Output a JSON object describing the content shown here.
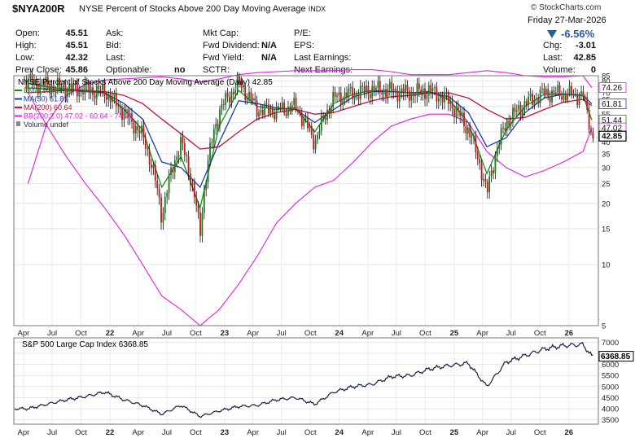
{
  "header": {
    "symbol": "$NYA200R",
    "name": "NYSE Percent of Stocks Above 200 Day Moving Average",
    "exchange": "INDX",
    "brand": "© StockCharts.com",
    "date": "Friday 27-Mar-2026",
    "change_pct": "-6.56%",
    "down_color": "#2a5a9e",
    "quote": [
      {
        "label": "Open:",
        "value": "45.51"
      },
      {
        "label": "High:",
        "value": "45.51"
      },
      {
        "label": "Low:",
        "value": "42.32"
      },
      {
        "label": "Prev Close:",
        "value": "45.86"
      }
    ],
    "book": [
      {
        "label": "Ask:",
        "value": ""
      },
      {
        "label": "Bid:",
        "value": ""
      },
      {
        "label": "Last:",
        "value": ""
      },
      {
        "label": "Optionable:",
        "value": "no"
      }
    ],
    "fundamentals": [
      {
        "label": "Mkt Cap:",
        "value": ""
      },
      {
        "label": "Fwd Dividend:",
        "value": "N/A"
      },
      {
        "label": "Fwd Yield:",
        "value": "N/A"
      },
      {
        "label": "SCTR:",
        "value": ""
      }
    ],
    "earnings": [
      {
        "label": "P/E:"
      },
      {
        "label": "EPS:"
      },
      {
        "label": "Last Earnings:"
      },
      {
        "label": "Next Earnings:"
      }
    ],
    "summary": [
      {
        "label": "Chg:",
        "value": "-3.01"
      },
      {
        "label": "Last:",
        "value": "42.85"
      },
      {
        "label": "Volume:",
        "value": "0"
      }
    ]
  },
  "chart_data": [
    {
      "type": "line",
      "subtype": "candlestick with overlays",
      "title": "NYSE Percent of Stocks Above 200 Day Moving Average (Daily) 42.85",
      "scale": "log",
      "ylim": [
        5,
        85
      ],
      "y_ticks": [
        5,
        10,
        15,
        20,
        25,
        30,
        35,
        40,
        45,
        50,
        55,
        60,
        65,
        70,
        75,
        80,
        85
      ],
      "x_tick_labels": [
        "Apr",
        "Jul",
        "Oct",
        "22",
        "Apr",
        "Jul",
        "Oct",
        "23",
        "Apr",
        "Jul",
        "Oct",
        "24",
        "Apr",
        "Jul",
        "Oct",
        "25",
        "Apr",
        "Jul",
        "Oct",
        "26"
      ],
      "grid": true,
      "legend_position": "top-left",
      "x": [
        "2021-04",
        "2021-06",
        "2021-08",
        "2021-10",
        "2021-12",
        "2022-02",
        "2022-04",
        "2022-06",
        "2022-08",
        "2022-10",
        "2022-12",
        "2023-02",
        "2023-04",
        "2023-06",
        "2023-08",
        "2023-10",
        "2023-12",
        "2024-02",
        "2024-04",
        "2024-06",
        "2024-08",
        "2024-10",
        "2024-12",
        "2025-02",
        "2025-04",
        "2025-06",
        "2025-08",
        "2025-10",
        "2025-12",
        "2026-02",
        "2026-03"
      ],
      "price": [
        80,
        76,
        74,
        73,
        71,
        56,
        43,
        17,
        40,
        14,
        57,
        78,
        58,
        57,
        60,
        40,
        66,
        70,
        73,
        72,
        70,
        72,
        64,
        46,
        22,
        50,
        62,
        70,
        69,
        68,
        43
      ],
      "legend": [
        {
          "name": "EMA(20) 51.44",
          "color": "#1b8a1b"
        },
        {
          "name": "MA(50) 61.81",
          "color": "#1a3fa8"
        },
        {
          "name": "MA(200) 60.64",
          "color": "#c0143c"
        },
        {
          "name": "BB(200,2.0) 47.02 - 60.64 - 74.26",
          "color": "#e020e0"
        },
        {
          "name": "Volume undef",
          "color": "#888888"
        }
      ],
      "series": [
        {
          "name": "EMA(20) 51.44",
          "values": [
            78,
            75,
            73,
            72,
            70,
            58,
            46,
            24,
            34,
            19,
            48,
            72,
            60,
            58,
            59,
            45,
            62,
            69,
            72,
            71,
            70,
            71,
            65,
            50,
            28,
            46,
            60,
            69,
            69,
            68,
            51.44
          ]
        },
        {
          "name": "MA(50) 61.81",
          "values": [
            74,
            73,
            72,
            71,
            70,
            62,
            52,
            32,
            30,
            24,
            40,
            64,
            62,
            59,
            58,
            50,
            58,
            67,
            71,
            71,
            70,
            70,
            67,
            56,
            38,
            42,
            56,
            66,
            69,
            68,
            61.81
          ]
        },
        {
          "name": "MA(200) 60.64",
          "values": [
            70,
            71,
            72,
            72,
            71,
            68,
            62,
            52,
            44,
            37,
            38,
            45,
            52,
            56,
            58,
            55,
            56,
            60,
            64,
            67,
            68,
            70,
            70,
            66,
            58,
            52,
            53,
            58,
            63,
            65,
            60.64
          ]
        },
        {
          "name": "BB upper 74.26",
          "values": [
            25,
            50,
            68,
            77,
            81,
            82,
            83,
            84,
            82,
            79,
            82,
            86,
            88,
            89,
            90,
            90,
            90,
            91,
            91,
            89,
            86,
            86,
            86,
            88,
            90,
            88,
            85,
            84,
            84,
            85,
            74.26
          ]
        },
        {
          "name": "BB lower 47.02",
          "values": [
            70,
            48,
            34,
            25,
            19,
            14,
            10,
            7,
            6,
            5,
            6,
            8,
            11,
            16,
            20,
            24,
            26,
            32,
            40,
            48,
            52,
            55,
            55,
            50,
            36,
            30,
            27,
            29,
            32,
            36,
            47.02
          ]
        }
      ],
      "right_labels": [
        "74.26",
        "61.81",
        "51.44",
        "47.02",
        "42.85"
      ]
    },
    {
      "type": "line",
      "title": "S&P 500 Large Cap Index 6368.85",
      "ylim": [
        3300,
        7200
      ],
      "y_ticks": [
        3500,
        4000,
        4500,
        5000,
        5500,
        6000,
        6500,
        7000
      ],
      "x_tick_labels": [
        "Apr",
        "Jul",
        "Oct",
        "22",
        "Apr",
        "Jul",
        "Oct",
        "23",
        "Apr",
        "Jul",
        "Oct",
        "24",
        "Apr",
        "Jul",
        "Oct",
        "25",
        "Apr",
        "Jul",
        "Oct",
        "26"
      ],
      "grid": true,
      "x": [
        "2021-04",
        "2021-06",
        "2021-08",
        "2021-10",
        "2021-12",
        "2022-02",
        "2022-04",
        "2022-06",
        "2022-08",
        "2022-10",
        "2022-12",
        "2023-02",
        "2023-04",
        "2023-06",
        "2023-08",
        "2023-10",
        "2023-12",
        "2024-02",
        "2024-04",
        "2024-06",
        "2024-08",
        "2024-10",
        "2024-12",
        "2025-02",
        "2025-04",
        "2025-06",
        "2025-08",
        "2025-10",
        "2025-12",
        "2026-02",
        "2026-03"
      ],
      "values": [
        4000,
        4200,
        4400,
        4550,
        4750,
        4400,
        4150,
        3750,
        4150,
        3650,
        3900,
        4100,
        4150,
        4400,
        4500,
        4200,
        4750,
        5000,
        5100,
        5450,
        5500,
        5800,
        5950,
        6050,
        5000,
        6100,
        6400,
        6700,
        6850,
        6900,
        6368.85
      ],
      "right_label": "6368.85"
    }
  ]
}
